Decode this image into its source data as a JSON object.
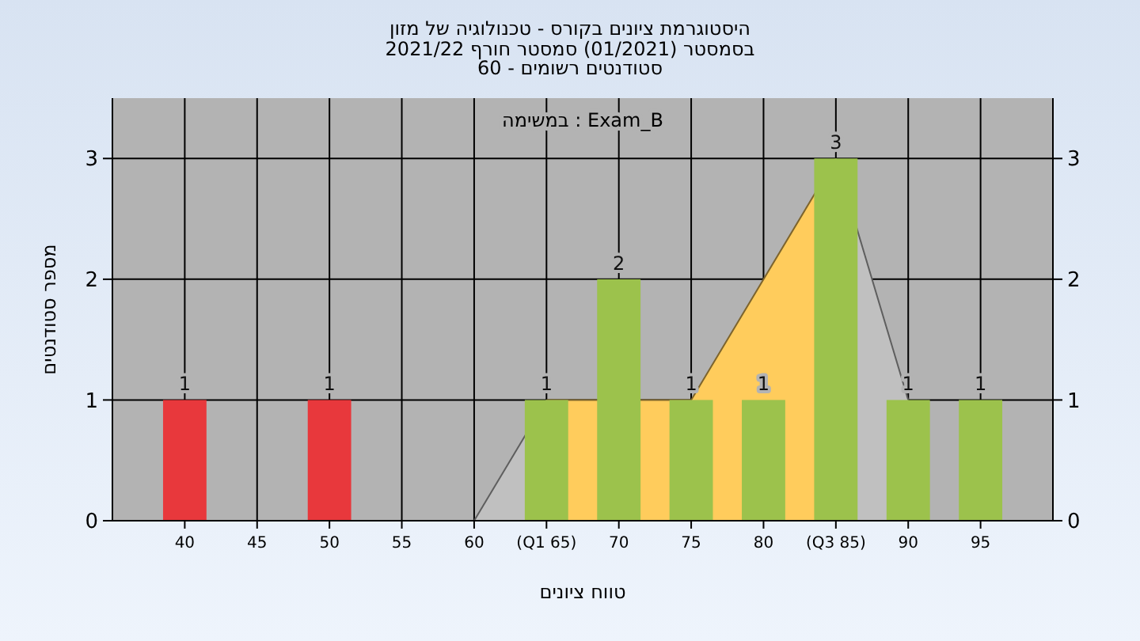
{
  "chart_data": {
    "type": "bar",
    "title": "היסטוגרמת ציונים בקורס - טכנולוגיה של מזון",
    "subtitle": "בסמסטר  (01/2021)  סמסטר חורף 2021/22\nסטודנטים רשומים - 60",
    "annotations": [
      "במשימה : Exam_B"
    ],
    "xlabel": "טווח ציונים",
    "ylabel": "מספר סטודנטים",
    "xlim": [
      35,
      100
    ],
    "xticks": [
      40,
      45,
      50,
      55,
      60,
      {
        "value": 65,
        "label": "(Q1 65)"
      },
      70,
      75,
      80,
      {
        "value": 85,
        "label": "(Q3 85)"
      },
      90,
      95
    ],
    "ylim": [
      0,
      3.5
    ],
    "yticks": [
      0,
      1,
      2,
      3
    ],
    "y2lim": [
      0,
      3.5
    ],
    "y2ticks": [
      0,
      1,
      2,
      3
    ],
    "grid": true,
    "series": [
      {
        "type": "area",
        "color": "#c0c0c0",
        "x": [
          60,
          65
        ],
        "values": [
          0,
          1
        ]
      },
      {
        "type": "area",
        "color": "#ffcc5c",
        "x": [
          65,
          75,
          85
        ],
        "values": [
          1,
          1,
          3
        ]
      },
      {
        "type": "area",
        "color": "#c0c0c0",
        "x": [
          85,
          90
        ],
        "values": [
          3,
          1
        ]
      },
      {
        "x": [
          40,
          50,
          65,
          70,
          75,
          80,
          85,
          90,
          95
        ],
        "values": [
          1,
          1,
          1,
          2,
          1,
          1,
          3,
          1,
          1
        ],
        "colors": [
          "#e8383c",
          "#e8383c",
          "#9cc24c",
          "#9cc24c",
          "#9cc24c",
          "#9cc24c",
          "#9cc24c",
          "#9cc24c",
          "#9cc24c"
        ],
        "value_labels": [
          "1",
          "1",
          "1",
          "2",
          "1",
          "1",
          "3",
          "1",
          "1"
        ]
      }
    ]
  }
}
